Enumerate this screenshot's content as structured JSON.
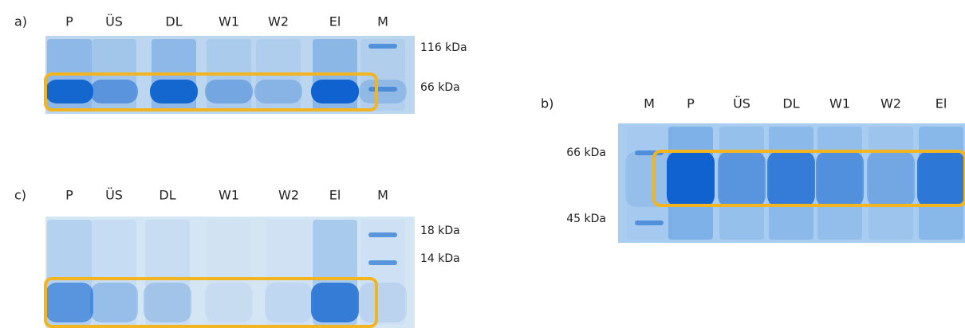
{
  "panels": [
    {
      "label": "a)",
      "lanes": [
        "P",
        "ÜS",
        "DL",
        "W1",
        "W2",
        "El",
        "M"
      ],
      "markers": [
        "116 kDa",
        "66 kDa"
      ]
    },
    {
      "label": "b)",
      "lanes": [
        "M",
        "P",
        "ÜS",
        "DL",
        "W1",
        "W2",
        "El"
      ],
      "markers": [
        "66 kDa",
        "45 kDa"
      ]
    },
    {
      "label": "c)",
      "lanes": [
        "P",
        "ÜS",
        "DL",
        "W1",
        "W2",
        "El",
        "M"
      ],
      "markers": [
        "18 kDa",
        "14 kDa"
      ]
    }
  ]
}
